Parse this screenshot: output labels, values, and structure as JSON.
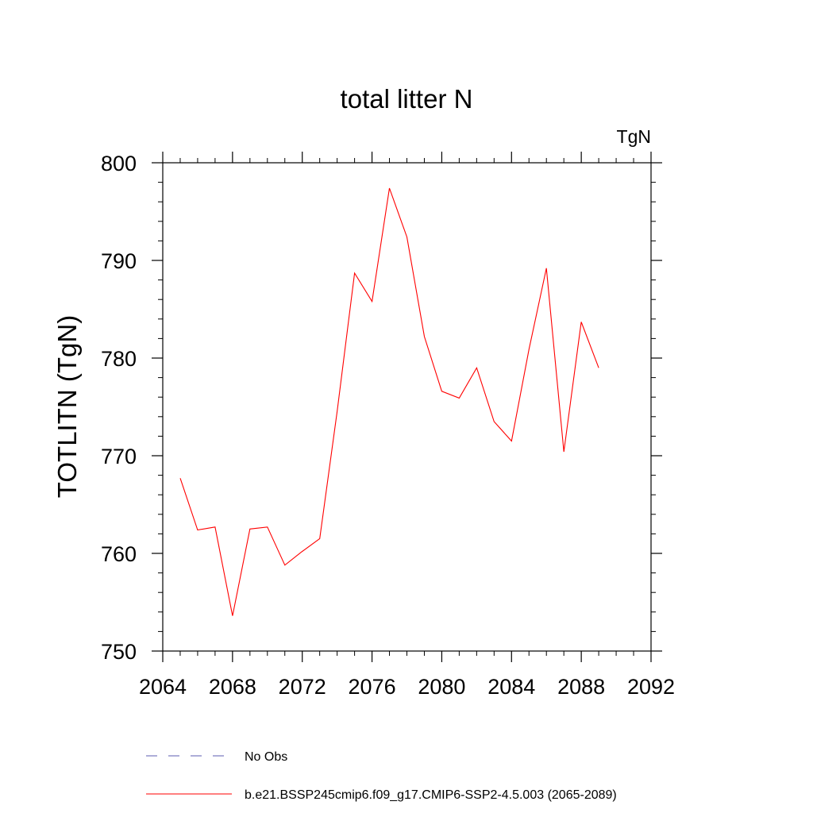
{
  "chart_data": {
    "type": "line",
    "title": "total litter N",
    "units_label": "TgN",
    "xlabel": "",
    "ylabel": "TOTLITN  (TgN)",
    "xlim": [
      2064,
      2092
    ],
    "ylim": [
      750,
      800
    ],
    "x_ticks": [
      2064,
      2068,
      2072,
      2076,
      2080,
      2084,
      2088,
      2092
    ],
    "y_ticks": [
      750,
      760,
      770,
      780,
      790,
      800
    ],
    "grid": false,
    "legend_placement": "bottom",
    "series": [
      {
        "name": "No Obs",
        "color": "#5b5bb0",
        "dash": "dashed",
        "x": [],
        "y": []
      },
      {
        "name": "b.e21.BSSP245cmip6.f09_g17.CMIP6-SSP2-4.5.003 (2065-2089)",
        "color": "#ff0000",
        "dash": "solid",
        "x": [
          2065,
          2066,
          2067,
          2068,
          2069,
          2070,
          2071,
          2072,
          2073,
          2074,
          2075,
          2076,
          2077,
          2078,
          2079,
          2080,
          2081,
          2082,
          2083,
          2084,
          2085,
          2086,
          2087,
          2088,
          2089
        ],
        "y": [
          767.7,
          762.4,
          762.7,
          753.6,
          762.5,
          762.7,
          758.8,
          760.2,
          761.5,
          774.5,
          788.7,
          785.8,
          797.4,
          792.4,
          782.2,
          776.6,
          775.9,
          779.0,
          773.5,
          771.5,
          780.9,
          789.2,
          770.4,
          783.7,
          779.0
        ]
      }
    ]
  }
}
